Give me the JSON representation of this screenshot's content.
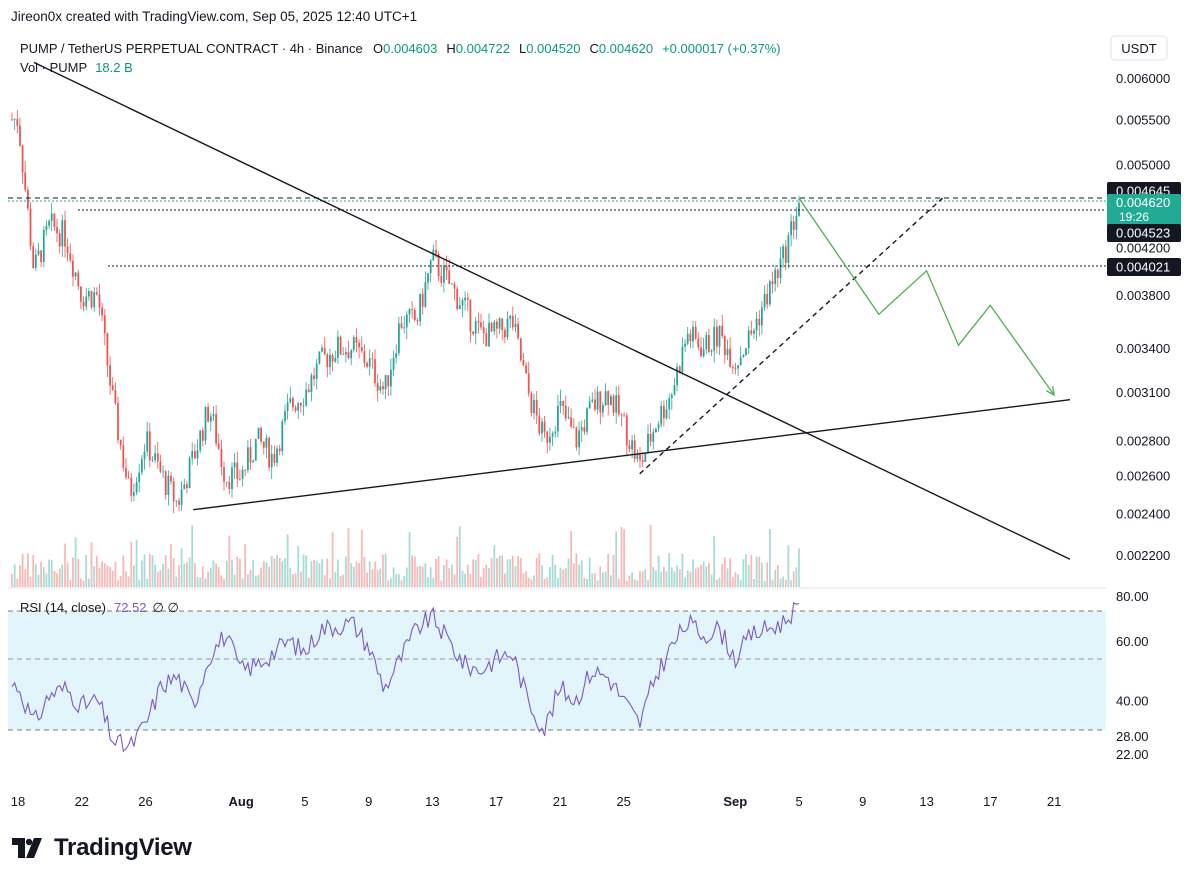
{
  "header": {
    "credit": "Jireon0x created with TradingView.com, Sep 05, 2025 12:40 UTC+1"
  },
  "colors": {
    "up": "#26a69a",
    "down": "#ef5350",
    "rsi_line": "#7e57c2",
    "rsi_band": "#e1f5fb",
    "projection": "#4caf50",
    "badge_green": "#22ab94",
    "badge_dark": "#131722"
  },
  "chart_data": {
    "type": "candlestick",
    "symbol_title": "PUMP / TetherUS PERPETUAL CONTRACT · 4h · Binance",
    "ohlc_text": {
      "o_label": "O",
      "o": "0.004603",
      "h_label": "H",
      "h": "0.004722",
      "l_label": "L",
      "l": "0.004520",
      "c_label": "C",
      "c": "0.004620",
      "change": "+0.000017 (+0.37%)"
    },
    "volume_label": "Vol · PUMP",
    "volume_value": "18.2 B",
    "currency": "USDT",
    "y_scale": "log",
    "y_ticks": [
      "0.006000",
      "0.005500",
      "0.005000",
      "0.004200",
      "0.003800",
      "0.003400",
      "0.003100",
      "0.002800",
      "0.002600",
      "0.002400",
      "0.002200"
    ],
    "x_ticks": [
      "18",
      "22",
      "26",
      "Aug",
      "5",
      "9",
      "13",
      "17",
      "21",
      "25",
      "Sep",
      "5",
      "9",
      "13",
      "17",
      "21"
    ],
    "price_levels": [
      {
        "value": "0.004645",
        "style": "dark"
      },
      {
        "value": "0.004620",
        "sub": "19:26",
        "style": "green"
      },
      {
        "value": "0.004523",
        "style": "dark"
      },
      {
        "value": "0.004021",
        "style": "dark"
      }
    ],
    "price_path": [
      {
        "date": "2025-07-18",
        "price": 0.0055
      },
      {
        "date": "2025-07-19",
        "price": 0.004
      },
      {
        "date": "2025-07-20",
        "price": 0.0044
      },
      {
        "date": "2025-07-21",
        "price": 0.0043
      },
      {
        "date": "2025-07-22",
        "price": 0.0038
      },
      {
        "date": "2025-07-23",
        "price": 0.0038
      },
      {
        "date": "2025-07-24",
        "price": 0.003
      },
      {
        "date": "2025-07-25",
        "price": 0.0025
      },
      {
        "date": "2025-07-26",
        "price": 0.0028
      },
      {
        "date": "2025-07-27",
        "price": 0.0026
      },
      {
        "date": "2025-07-28",
        "price": 0.00245
      },
      {
        "date": "2025-07-29",
        "price": 0.0027
      },
      {
        "date": "2025-07-30",
        "price": 0.003
      },
      {
        "date": "2025-07-31",
        "price": 0.0026
      },
      {
        "date": "2025-08-01",
        "price": 0.0026
      },
      {
        "date": "2025-08-02",
        "price": 0.0028
      },
      {
        "date": "2025-08-03",
        "price": 0.0027
      },
      {
        "date": "2025-08-04",
        "price": 0.003
      },
      {
        "date": "2025-08-05",
        "price": 0.0031
      },
      {
        "date": "2025-08-06",
        "price": 0.0033
      },
      {
        "date": "2025-08-07",
        "price": 0.0034
      },
      {
        "date": "2025-08-08",
        "price": 0.0034
      },
      {
        "date": "2025-08-09",
        "price": 0.0033
      },
      {
        "date": "2025-08-10",
        "price": 0.0031
      },
      {
        "date": "2025-08-11",
        "price": 0.0036
      },
      {
        "date": "2025-08-12",
        "price": 0.0036
      },
      {
        "date": "2025-08-13",
        "price": 0.0041
      },
      {
        "date": "2025-08-14",
        "price": 0.0039
      },
      {
        "date": "2025-08-15",
        "price": 0.0037
      },
      {
        "date": "2025-08-16",
        "price": 0.0035
      },
      {
        "date": "2025-08-17",
        "price": 0.0035
      },
      {
        "date": "2025-08-18",
        "price": 0.0036
      },
      {
        "date": "2025-08-19",
        "price": 0.0031
      },
      {
        "date": "2025-08-20",
        "price": 0.0028
      },
      {
        "date": "2025-08-21",
        "price": 0.003
      },
      {
        "date": "2025-08-22",
        "price": 0.0028
      },
      {
        "date": "2025-08-23",
        "price": 0.003
      },
      {
        "date": "2025-08-24",
        "price": 0.0031
      },
      {
        "date": "2025-08-25",
        "price": 0.0029
      },
      {
        "date": "2025-08-26",
        "price": 0.00265
      },
      {
        "date": "2025-08-27",
        "price": 0.0029
      },
      {
        "date": "2025-08-28",
        "price": 0.0031
      },
      {
        "date": "2025-08-29",
        "price": 0.0035
      },
      {
        "date": "2025-08-30",
        "price": 0.0034
      },
      {
        "date": "2025-08-31",
        "price": 0.0035
      },
      {
        "date": "2025-09-01",
        "price": 0.0033
      },
      {
        "date": "2025-09-02",
        "price": 0.0035
      },
      {
        "date": "2025-09-03",
        "price": 0.0038
      },
      {
        "date": "2025-09-04",
        "price": 0.0041
      },
      {
        "date": "2025-09-05",
        "price": 0.00462
      }
    ],
    "trendlines": [
      {
        "from": {
          "date": "2025-07-19",
          "price": 0.0062
        },
        "to": {
          "date": "2025-09-22",
          "price": 0.00218
        },
        "style": "solid"
      },
      {
        "from": {
          "date": "2025-07-29",
          "price": 0.00242
        },
        "to": {
          "date": "2025-09-22",
          "price": 0.00305
        },
        "style": "solid"
      },
      {
        "from": {
          "date": "2025-08-26",
          "price": 0.00261
        },
        "to": {
          "date": "2025-09-14",
          "price": 0.00466
        },
        "style": "dashed"
      }
    ],
    "projection_path": [
      {
        "date": "2025-09-05",
        "price": 0.00466
      },
      {
        "date": "2025-09-10",
        "price": 0.00365
      },
      {
        "date": "2025-09-13",
        "price": 0.004
      },
      {
        "date": "2025-09-15",
        "price": 0.00342
      },
      {
        "date": "2025-09-17",
        "price": 0.00372
      },
      {
        "date": "2025-09-21",
        "price": 0.00308
      }
    ],
    "rsi": {
      "label": "RSI (14, close)",
      "value": "72.52",
      "extra": "∅ ∅",
      "ticks": [
        "80.00",
        "60.00",
        "40.00",
        "28.00",
        "22.00"
      ],
      "band": [
        30,
        70
      ],
      "path": [
        {
          "date": "2025-07-18",
          "value": 45
        },
        {
          "date": "2025-07-19",
          "value": 32
        },
        {
          "date": "2025-07-20",
          "value": 42
        },
        {
          "date": "2025-07-21",
          "value": 44
        },
        {
          "date": "2025-07-22",
          "value": 38
        },
        {
          "date": "2025-07-23",
          "value": 40
        },
        {
          "date": "2025-07-24",
          "value": 26
        },
        {
          "date": "2025-07-25",
          "value": 24
        },
        {
          "date": "2025-07-26",
          "value": 32
        },
        {
          "date": "2025-07-27",
          "value": 45
        },
        {
          "date": "2025-07-28",
          "value": 48
        },
        {
          "date": "2025-07-29",
          "value": 38
        },
        {
          "date": "2025-07-30",
          "value": 55
        },
        {
          "date": "2025-07-31",
          "value": 62
        },
        {
          "date": "2025-08-01",
          "value": 50
        },
        {
          "date": "2025-08-02",
          "value": 52
        },
        {
          "date": "2025-08-03",
          "value": 56
        },
        {
          "date": "2025-08-04",
          "value": 60
        },
        {
          "date": "2025-08-05",
          "value": 56
        },
        {
          "date": "2025-08-06",
          "value": 64
        },
        {
          "date": "2025-08-07",
          "value": 65
        },
        {
          "date": "2025-08-08",
          "value": 66
        },
        {
          "date": "2025-08-09",
          "value": 58
        },
        {
          "date": "2025-08-10",
          "value": 44
        },
        {
          "date": "2025-08-11",
          "value": 54
        },
        {
          "date": "2025-08-12",
          "value": 64
        },
        {
          "date": "2025-08-13",
          "value": 68
        },
        {
          "date": "2025-08-14",
          "value": 60
        },
        {
          "date": "2025-08-15",
          "value": 52
        },
        {
          "date": "2025-08-16",
          "value": 50
        },
        {
          "date": "2025-08-17",
          "value": 54
        },
        {
          "date": "2025-08-18",
          "value": 56
        },
        {
          "date": "2025-08-19",
          "value": 40
        },
        {
          "date": "2025-08-20",
          "value": 30
        },
        {
          "date": "2025-08-21",
          "value": 44
        },
        {
          "date": "2025-08-22",
          "value": 40
        },
        {
          "date": "2025-08-23",
          "value": 50
        },
        {
          "date": "2025-08-24",
          "value": 48
        },
        {
          "date": "2025-08-25",
          "value": 40
        },
        {
          "date": "2025-08-26",
          "value": 32
        },
        {
          "date": "2025-08-27",
          "value": 48
        },
        {
          "date": "2025-08-28",
          "value": 58
        },
        {
          "date": "2025-08-29",
          "value": 66
        },
        {
          "date": "2025-08-30",
          "value": 62
        },
        {
          "date": "2025-08-31",
          "value": 64
        },
        {
          "date": "2025-09-01",
          "value": 54
        },
        {
          "date": "2025-09-02",
          "value": 62
        },
        {
          "date": "2025-09-03",
          "value": 64
        },
        {
          "date": "2025-09-04",
          "value": 66
        },
        {
          "date": "2025-09-05",
          "value": 72.52
        }
      ]
    }
  },
  "footer": {
    "logo_text": "TradingView"
  }
}
